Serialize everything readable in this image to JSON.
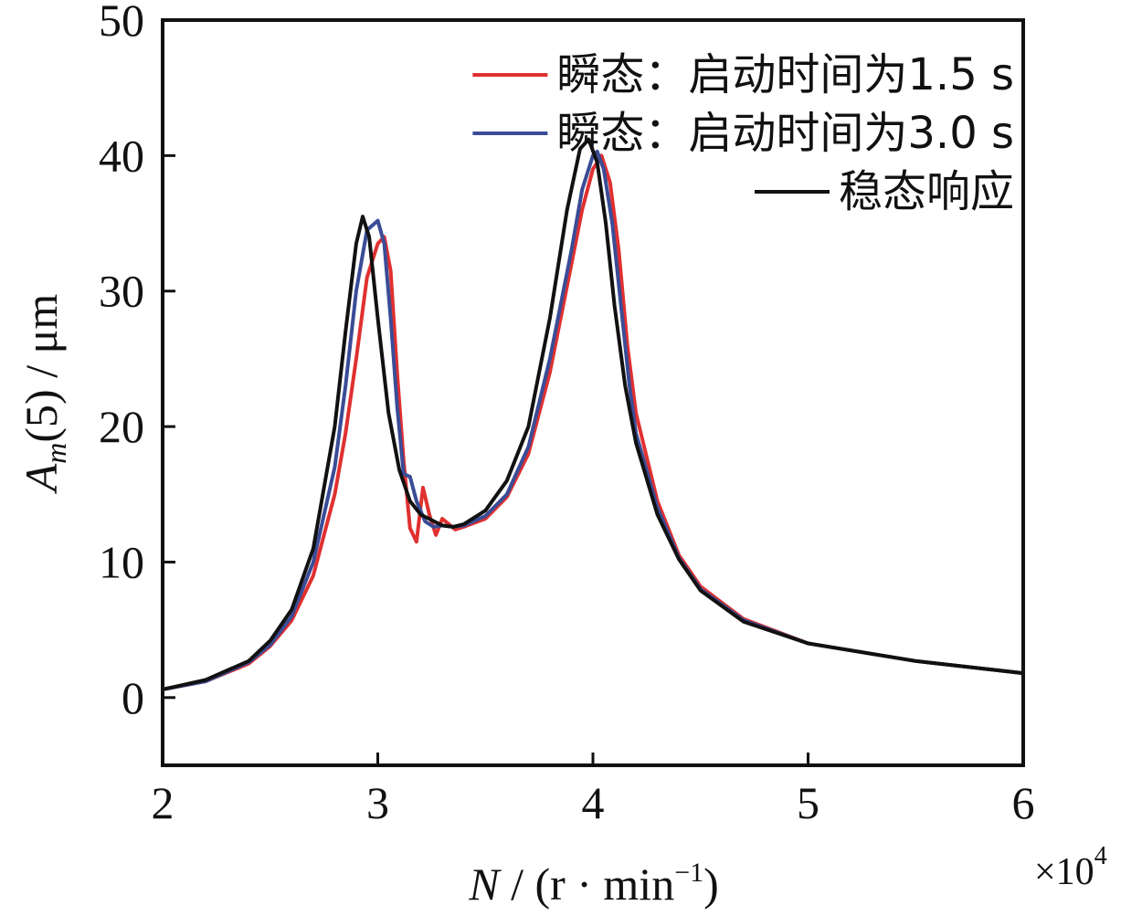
{
  "chart_data": {
    "type": "line",
    "xlabel_var": "N",
    "xlabel_unit": " / (r · min",
    "xlabel_sup": "−1",
    "xlabel_close": ")",
    "x_multiplier": "×10",
    "x_multiplier_exp": "4",
    "ylabel_var": "A",
    "ylabel_sub": "m",
    "ylabel_rest": "(5) / μm",
    "xlim": [
      2,
      6
    ],
    "ylim": [
      -5,
      50
    ],
    "x_ticks": [
      2,
      3,
      4,
      5,
      6
    ],
    "y_ticks": [
      0,
      10,
      20,
      30,
      40,
      50
    ],
    "grid": false,
    "legend_position": "top-right",
    "series": [
      {
        "name": "瞬态：启动时间为1.5 s",
        "color": "#e03030",
        "x": [
          2.0,
          2.2,
          2.4,
          2.5,
          2.6,
          2.7,
          2.8,
          2.85,
          2.9,
          2.95,
          3.0,
          3.03,
          3.06,
          3.09,
          3.12,
          3.15,
          3.18,
          3.21,
          3.24,
          3.27,
          3.3,
          3.33,
          3.36,
          3.4,
          3.45,
          3.5,
          3.6,
          3.7,
          3.8,
          3.9,
          3.95,
          4.0,
          4.04,
          4.08,
          4.12,
          4.16,
          4.2,
          4.3,
          4.4,
          4.5,
          4.7,
          5.0,
          5.5,
          6.0
        ],
        "y": [
          0.6,
          1.2,
          2.5,
          3.8,
          5.7,
          9.0,
          15.0,
          19.5,
          25.0,
          31.0,
          33.5,
          34.0,
          31.5,
          24.0,
          17.5,
          12.5,
          11.5,
          15.5,
          13.5,
          12.0,
          13.2,
          12.8,
          12.4,
          12.6,
          12.9,
          13.2,
          14.8,
          18.0,
          24.0,
          32.0,
          36.0,
          39.0,
          40.0,
          38.0,
          33.0,
          26.0,
          21.0,
          14.5,
          10.5,
          8.2,
          5.8,
          4.0,
          2.7,
          1.8
        ]
      },
      {
        "name": "瞬态：启动时间为3.0 s",
        "color": "#3a4c96",
        "x": [
          2.0,
          2.2,
          2.4,
          2.5,
          2.6,
          2.7,
          2.8,
          2.85,
          2.9,
          2.95,
          3.0,
          3.03,
          3.06,
          3.09,
          3.12,
          3.15,
          3.18,
          3.22,
          3.26,
          3.3,
          3.35,
          3.4,
          3.5,
          3.6,
          3.7,
          3.8,
          3.9,
          3.95,
          4.0,
          4.02,
          4.05,
          4.09,
          4.13,
          4.17,
          4.2,
          4.3,
          4.4,
          4.5,
          4.7,
          5.0,
          5.5,
          6.0
        ],
        "y": [
          0.6,
          1.2,
          2.6,
          3.9,
          6.0,
          10.0,
          17.0,
          23.0,
          30.0,
          34.5,
          35.2,
          33.5,
          28.0,
          21.5,
          16.5,
          16.3,
          14.5,
          13.0,
          12.6,
          12.7,
          12.6,
          12.7,
          13.4,
          15.0,
          18.5,
          25.0,
          33.0,
          37.5,
          40.0,
          40.3,
          39.0,
          35.0,
          29.0,
          23.0,
          19.5,
          14.0,
          10.3,
          8.0,
          5.7,
          4.0,
          2.7,
          1.8
        ]
      },
      {
        "name": "稳态响应",
        "color": "#111111",
        "x": [
          2.0,
          2.2,
          2.4,
          2.5,
          2.6,
          2.7,
          2.8,
          2.85,
          2.9,
          2.93,
          2.96,
          3.0,
          3.05,
          3.1,
          3.15,
          3.2,
          3.3,
          3.35,
          3.4,
          3.5,
          3.6,
          3.7,
          3.8,
          3.88,
          3.94,
          3.98,
          4.02,
          4.06,
          4.1,
          4.15,
          4.2,
          4.3,
          4.4,
          4.5,
          4.7,
          5.0,
          5.5,
          6.0
        ],
        "y": [
          0.6,
          1.3,
          2.7,
          4.2,
          6.5,
          11.0,
          20.0,
          27.0,
          33.5,
          35.5,
          34.0,
          28.0,
          21.0,
          16.8,
          14.5,
          13.5,
          12.7,
          12.6,
          12.8,
          13.8,
          16.0,
          20.0,
          28.0,
          36.0,
          40.5,
          41.2,
          39.5,
          35.0,
          29.0,
          23.0,
          18.8,
          13.5,
          10.2,
          7.9,
          5.6,
          4.0,
          2.7,
          1.8
        ]
      }
    ]
  }
}
